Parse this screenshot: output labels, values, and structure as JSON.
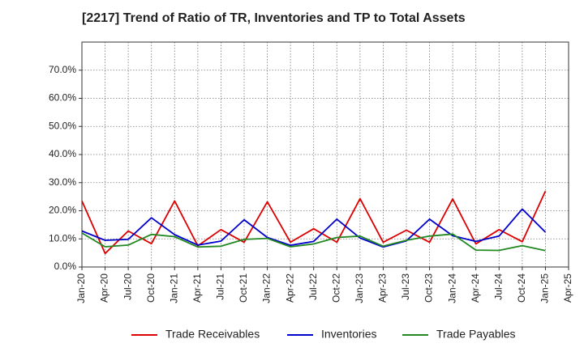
{
  "chart_data": {
    "type": "line",
    "title": "[2217]  Trend of Ratio of TR, Inventories and TP to Total Assets",
    "xlabel": "",
    "ylabel": "",
    "ylim": [
      0,
      0.8
    ],
    "yticks": [
      0,
      0.1,
      0.2,
      0.3,
      0.4,
      0.5,
      0.6,
      0.7
    ],
    "ytick_labels": [
      "0.0%",
      "10.0%",
      "20.0%",
      "30.0%",
      "40.0%",
      "50.0%",
      "60.0%",
      "70.0%"
    ],
    "xtick_labels": [
      "Jan-20",
      "Apr-20",
      "Jul-20",
      "Oct-20",
      "Jan-21",
      "Apr-21",
      "Jul-21",
      "Oct-21",
      "Jan-22",
      "Apr-22",
      "Jul-22",
      "Oct-22",
      "Jan-23",
      "Apr-23",
      "Jul-23",
      "Oct-23",
      "Jan-24",
      "Apr-24",
      "Jul-24",
      "Oct-24",
      "Jan-25",
      "Apr-25"
    ],
    "grid": true,
    "legend_position": "bottom",
    "x": [
      "Jan-20",
      "Apr-20",
      "Jul-20",
      "Oct-20",
      "Jan-21",
      "Apr-21",
      "Jul-21",
      "Oct-21",
      "Jan-22",
      "Apr-22",
      "Jul-22",
      "Oct-22",
      "Jan-23",
      "Apr-23",
      "Jul-23",
      "Oct-23",
      "Jan-24",
      "Apr-24",
      "Jul-24",
      "Oct-24",
      "Jan-25"
    ],
    "series": [
      {
        "name": "Trade Receivables",
        "color": "#dd0000",
        "values": [
          0.235,
          0.048,
          0.128,
          0.083,
          0.235,
          0.075,
          0.133,
          0.088,
          0.232,
          0.088,
          0.136,
          0.088,
          0.243,
          0.088,
          0.131,
          0.088,
          0.242,
          0.082,
          0.133,
          0.09,
          0.27
        ]
      },
      {
        "name": "Inventories",
        "color": "#0000cc",
        "values": [
          0.128,
          0.095,
          0.098,
          0.175,
          0.115,
          0.078,
          0.092,
          0.168,
          0.105,
          0.077,
          0.091,
          0.17,
          0.103,
          0.071,
          0.093,
          0.17,
          0.111,
          0.091,
          0.11,
          0.206,
          0.124
        ]
      },
      {
        "name": "Trade Payables",
        "color": "#228822",
        "values": [
          0.121,
          0.072,
          0.078,
          0.116,
          0.108,
          0.071,
          0.074,
          0.098,
          0.102,
          0.072,
          0.082,
          0.105,
          0.11,
          0.074,
          0.095,
          0.11,
          0.117,
          0.06,
          0.059,
          0.076,
          0.058
        ]
      }
    ]
  }
}
